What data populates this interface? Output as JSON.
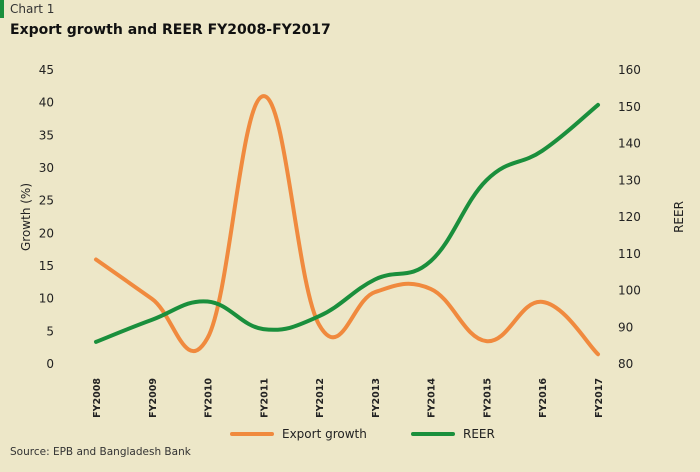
{
  "header": {
    "chart_number": "Chart 1",
    "title": "Export growth and REER FY2008-FY2017"
  },
  "footer": {
    "source": "Source: EPB and Bangladesh Bank"
  },
  "colors": {
    "background": "#ede7c8",
    "export_growth": "#f08a3e",
    "reer": "#1a8f3c"
  },
  "chart_data": {
    "type": "line",
    "title": "Export growth and REER FY2008-FY2017",
    "categories": [
      "FY2008",
      "FY2009",
      "FY2010",
      "FY2011",
      "FY2012",
      "FY2013",
      "FY2014",
      "FY2015",
      "FY2016",
      "FY2017"
    ],
    "ylabel_left": "Growth (%)",
    "ylabel_right": "REER",
    "ylim_left": [
      0,
      45
    ],
    "ylim_right": [
      80,
      160
    ],
    "yticks_left": [
      "0",
      "5",
      "10",
      "15",
      "20",
      "25",
      "30",
      "35",
      "40",
      "45"
    ],
    "yticks_right": [
      "80",
      "90",
      "100",
      "110",
      "120",
      "130",
      "140",
      "150",
      "160"
    ],
    "legend_position": "bottom-center",
    "grid": false,
    "series": [
      {
        "name": "Export growth",
        "axis": "left",
        "values": [
          16.0,
          10.0,
          4.0,
          41.0,
          6.0,
          11.0,
          11.5,
          3.5,
          9.5,
          1.5
        ]
      },
      {
        "name": "REER",
        "axis": "right",
        "values": [
          86.0,
          92.0,
          97.0,
          89.5,
          93.0,
          103.0,
          108.0,
          130.0,
          138.0,
          150.5
        ]
      }
    ]
  }
}
